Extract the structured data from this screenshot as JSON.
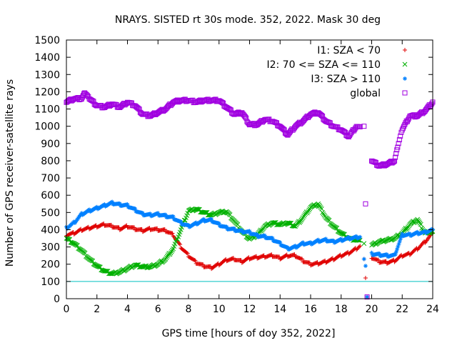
{
  "chart_data": {
    "type": "scatter",
    "title": "NRAYS. SISTED rt 30s mode. 352, 2022. Mask 30 deg",
    "xlabel": "GPS time [hours of doy 352, 2022]",
    "ylabel": "Number of GPS receiver-satellite rays",
    "xlim": [
      0,
      24
    ],
    "ylim": [
      0,
      1500
    ],
    "xticks": [
      "0",
      "2",
      "4",
      "6",
      "8",
      "10",
      "12",
      "14",
      "16",
      "18",
      "20",
      "22",
      "24"
    ],
    "yticks": [
      "0",
      "100",
      "200",
      "300",
      "400",
      "500",
      "600",
      "700",
      "800",
      "900",
      "1000",
      "1100",
      "1200",
      "1300",
      "1400",
      "1500"
    ],
    "reference_line": {
      "y": 100,
      "color": "#00c0c0"
    },
    "legend_position": "top-right",
    "series": [
      {
        "name": "I1: SZA < 70",
        "marker": "+",
        "color": "#e00000",
        "points": [
          [
            0,
            370
          ],
          [
            0.5,
            380
          ],
          [
            1,
            400
          ],
          [
            1.5,
            410
          ],
          [
            2,
            420
          ],
          [
            2.5,
            430
          ],
          [
            3,
            420
          ],
          [
            3.5,
            405
          ],
          [
            4,
            420
          ],
          [
            4.5,
            405
          ],
          [
            5,
            395
          ],
          [
            5.5,
            405
          ],
          [
            6,
            400
          ],
          [
            6.5,
            395
          ],
          [
            7,
            370
          ],
          [
            7.5,
            300
          ],
          [
            8,
            250
          ],
          [
            8.5,
            210
          ],
          [
            9,
            190
          ],
          [
            9.5,
            180
          ],
          [
            10,
            200
          ],
          [
            10.5,
            225
          ],
          [
            11,
            230
          ],
          [
            11.5,
            215
          ],
          [
            12,
            235
          ],
          [
            12.5,
            240
          ],
          [
            13,
            245
          ],
          [
            13.5,
            250
          ],
          [
            14,
            235
          ],
          [
            14.5,
            250
          ],
          [
            15,
            250
          ],
          [
            15.5,
            220
          ],
          [
            16,
            200
          ],
          [
            16.5,
            205
          ],
          [
            17,
            215
          ],
          [
            17.5,
            230
          ],
          [
            18,
            250
          ],
          [
            18.5,
            265
          ],
          [
            19,
            290
          ],
          [
            19.3,
            310
          ],
          [
            19.5,
            230
          ],
          [
            19.6,
            120
          ],
          [
            19.7,
            10
          ],
          [
            20,
            240
          ],
          [
            20.5,
            215
          ],
          [
            21,
            210
          ],
          [
            21.5,
            220
          ],
          [
            22,
            250
          ],
          [
            22.5,
            260
          ],
          [
            23,
            290
          ],
          [
            23.5,
            330
          ],
          [
            24,
            380
          ]
        ]
      },
      {
        "name": "I2: 70 <= SZA <= 110",
        "marker": "x",
        "color": "#00b000",
        "points": [
          [
            0,
            350
          ],
          [
            0.5,
            320
          ],
          [
            1,
            280
          ],
          [
            1.5,
            230
          ],
          [
            2,
            190
          ],
          [
            2.5,
            160
          ],
          [
            3,
            145
          ],
          [
            3.5,
            155
          ],
          [
            4,
            175
          ],
          [
            4.5,
            195
          ],
          [
            5,
            185
          ],
          [
            5.5,
            185
          ],
          [
            6,
            200
          ],
          [
            6.5,
            230
          ],
          [
            7,
            290
          ],
          [
            7.5,
            400
          ],
          [
            8,
            510
          ],
          [
            8.5,
            520
          ],
          [
            9,
            500
          ],
          [
            9.5,
            485
          ],
          [
            10,
            500
          ],
          [
            10.5,
            505
          ],
          [
            11,
            450
          ],
          [
            11.5,
            390
          ],
          [
            12,
            345
          ],
          [
            12.5,
            370
          ],
          [
            13,
            420
          ],
          [
            13.5,
            440
          ],
          [
            14,
            430
          ],
          [
            14.5,
            440
          ],
          [
            15,
            420
          ],
          [
            15.5,
            470
          ],
          [
            16,
            530
          ],
          [
            16.5,
            550
          ],
          [
            17,
            470
          ],
          [
            17.5,
            420
          ],
          [
            18,
            380
          ],
          [
            18.5,
            350
          ],
          [
            19,
            340
          ],
          [
            19.3,
            330
          ],
          [
            19.5,
            320
          ],
          [
            20,
            310
          ],
          [
            20.5,
            330
          ],
          [
            21,
            340
          ],
          [
            21.5,
            350
          ],
          [
            22,
            380
          ],
          [
            22.5,
            430
          ],
          [
            23,
            460
          ],
          [
            23.5,
            380
          ],
          [
            24,
            390
          ]
        ]
      },
      {
        "name": "I3: SZA > 110",
        "marker": "*",
        "color": "#0080ff",
        "points": [
          [
            0,
            410
          ],
          [
            0.5,
            440
          ],
          [
            1,
            490
          ],
          [
            1.5,
            510
          ],
          [
            2,
            525
          ],
          [
            2.5,
            540
          ],
          [
            3,
            555
          ],
          [
            3.5,
            545
          ],
          [
            4,
            540
          ],
          [
            4.5,
            515
          ],
          [
            5,
            490
          ],
          [
            5.5,
            485
          ],
          [
            6,
            490
          ],
          [
            6.5,
            480
          ],
          [
            7,
            470
          ],
          [
            7.5,
            440
          ],
          [
            8,
            420
          ],
          [
            8.5,
            435
          ],
          [
            9,
            455
          ],
          [
            9.5,
            455
          ],
          [
            10,
            430
          ],
          [
            10.5,
            410
          ],
          [
            11,
            400
          ],
          [
            11.5,
            390
          ],
          [
            12,
            385
          ],
          [
            12.5,
            365
          ],
          [
            13,
            360
          ],
          [
            13.5,
            345
          ],
          [
            14,
            320
          ],
          [
            14.5,
            290
          ],
          [
            15,
            300
          ],
          [
            15.5,
            320
          ],
          [
            16,
            320
          ],
          [
            16.5,
            335
          ],
          [
            17,
            340
          ],
          [
            17.5,
            330
          ],
          [
            18,
            340
          ],
          [
            18.5,
            350
          ],
          [
            19,
            355
          ],
          [
            19.3,
            360
          ],
          [
            19.5,
            230
          ],
          [
            19.6,
            190
          ],
          [
            19.7,
            10
          ],
          [
            20,
            260
          ],
          [
            20.5,
            255
          ],
          [
            21,
            250
          ],
          [
            21.5,
            250
          ],
          [
            22,
            370
          ],
          [
            22.5,
            370
          ],
          [
            23,
            380
          ],
          [
            23.5,
            385
          ],
          [
            24,
            400
          ]
        ]
      },
      {
        "name": "global",
        "marker": "square",
        "color": "#a000e0",
        "points": [
          [
            0,
            1140
          ],
          [
            0.5,
            1160
          ],
          [
            1,
            1160
          ],
          [
            1.2,
            1195
          ],
          [
            1.5,
            1160
          ],
          [
            2,
            1120
          ],
          [
            2.5,
            1110
          ],
          [
            3,
            1130
          ],
          [
            3.5,
            1110
          ],
          [
            4,
            1140
          ],
          [
            4.5,
            1120
          ],
          [
            5,
            1070
          ],
          [
            5.5,
            1060
          ],
          [
            6,
            1080
          ],
          [
            6.5,
            1100
          ],
          [
            7,
            1140
          ],
          [
            7.5,
            1150
          ],
          [
            8,
            1150
          ],
          [
            8.5,
            1140
          ],
          [
            9,
            1150
          ],
          [
            9.5,
            1150
          ],
          [
            10,
            1150
          ],
          [
            10.5,
            1110
          ],
          [
            11,
            1070
          ],
          [
            11.5,
            1080
          ],
          [
            12,
            1010
          ],
          [
            12.5,
            1010
          ],
          [
            13,
            1040
          ],
          [
            13.5,
            1030
          ],
          [
            14,
            1000
          ],
          [
            14.5,
            950
          ],
          [
            15,
            1000
          ],
          [
            15.5,
            1030
          ],
          [
            16,
            1070
          ],
          [
            16.5,
            1080
          ],
          [
            17,
            1030
          ],
          [
            17.5,
            1000
          ],
          [
            18,
            980
          ],
          [
            18.5,
            940
          ],
          [
            19,
            1000
          ],
          [
            19.3,
            990
          ],
          [
            19.5,
            1000
          ],
          [
            19.6,
            550
          ],
          [
            19.7,
            10
          ],
          [
            20,
            800
          ],
          [
            20.5,
            770
          ],
          [
            21,
            780
          ],
          [
            21.5,
            800
          ],
          [
            21.7,
            880
          ],
          [
            22,
            980
          ],
          [
            22.5,
            1060
          ],
          [
            23,
            1060
          ],
          [
            23.5,
            1090
          ],
          [
            24,
            1140
          ]
        ]
      }
    ]
  }
}
